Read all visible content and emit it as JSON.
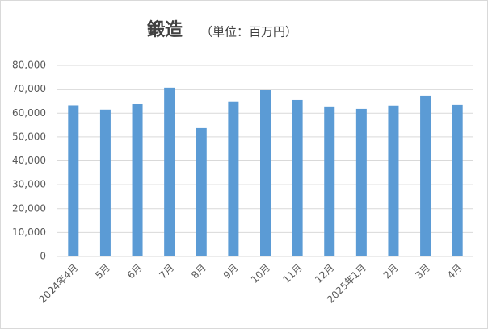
{
  "chart_data": {
    "type": "bar",
    "title": "鍛造",
    "subtitle": "（単位：百万円）",
    "categories": [
      "2024年4月",
      "5月",
      "6月",
      "7月",
      "8月",
      "9月",
      "10月",
      "11月",
      "12月",
      "2025年1月",
      "2月",
      "3月",
      "4月"
    ],
    "values": [
      63300,
      61500,
      63800,
      70600,
      53700,
      64900,
      69600,
      65500,
      62500,
      61800,
      63200,
      67200,
      63500
    ],
    "color": "#5b9bd5",
    "ylim": [
      0,
      80000
    ],
    "yticks": [
      0,
      {
        "value": 10000,
        "label": "10,000"
      },
      {
        "value": 20000,
        "label": "20,000"
      },
      {
        "value": 30000,
        "label": "30,000"
      },
      {
        "value": 40000,
        "label": "40,000"
      },
      {
        "value": 50000,
        "label": "50,000"
      },
      {
        "value": 60000,
        "label": "60,000"
      },
      {
        "value": 70000,
        "label": "70,000"
      },
      {
        "value": 80000,
        "label": "80,000"
      }
    ],
    "grid": true
  }
}
